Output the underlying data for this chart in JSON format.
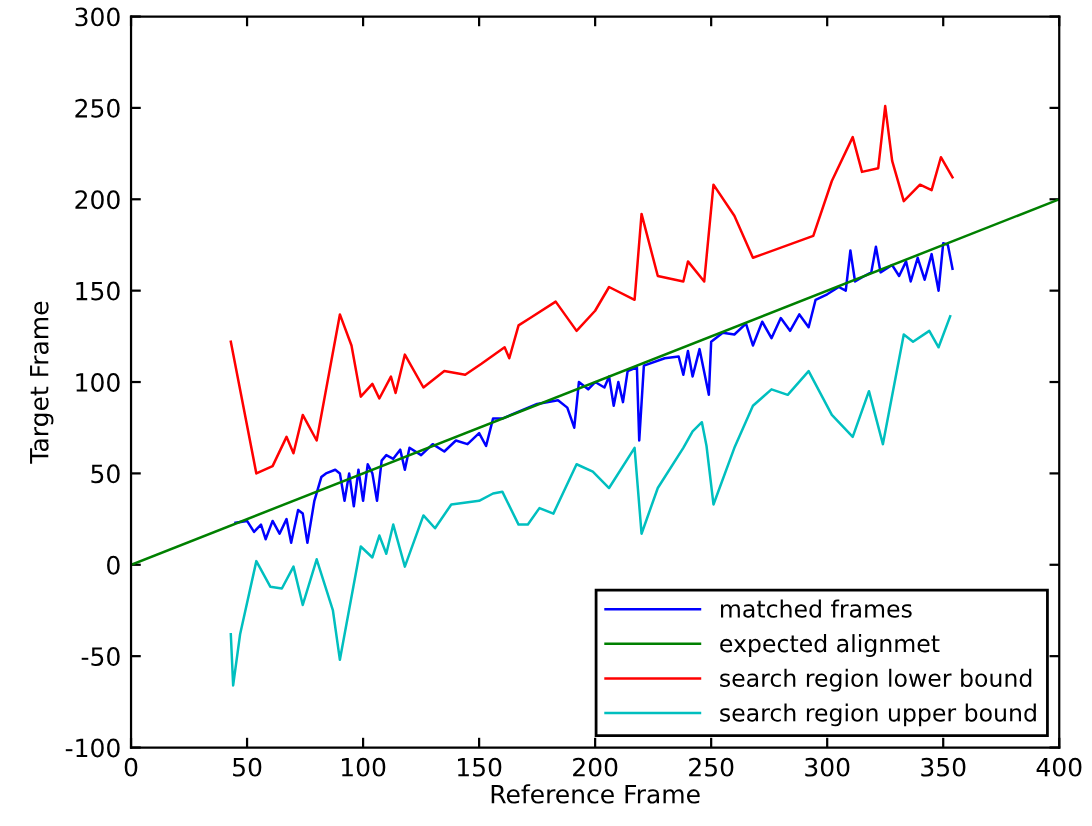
{
  "chart_data": {
    "type": "line",
    "xlabel": "Reference Frame",
    "ylabel": "Target Frame",
    "xlim": [
      0,
      400
    ],
    "ylim": [
      -100,
      300
    ],
    "xticks": [
      0,
      50,
      100,
      150,
      200,
      250,
      300,
      350,
      400
    ],
    "yticks": [
      -100,
      -50,
      0,
      50,
      100,
      150,
      200,
      250,
      300
    ],
    "grid": false,
    "legend": "bottom right",
    "series": [
      {
        "name": "matched frames",
        "color": "#0000ff",
        "x": [
          45,
          50,
          53,
          56,
          58,
          61,
          64,
          67,
          69,
          72,
          74,
          76,
          79,
          82,
          84,
          88,
          90,
          92,
          94,
          96,
          98,
          100,
          102,
          104,
          106,
          108,
          110,
          113,
          116,
          118,
          120,
          125,
          130,
          135,
          140,
          145,
          150,
          153,
          156,
          160,
          175,
          184,
          188,
          191,
          193,
          197,
          200,
          204,
          206,
          208,
          210,
          212,
          214,
          218,
          219,
          221,
          230,
          236,
          238,
          240,
          242,
          245,
          249,
          250,
          255,
          260,
          265,
          268,
          272,
          276,
          280,
          284,
          288,
          292,
          295,
          300,
          305,
          308,
          310,
          312,
          316,
          319,
          321,
          323,
          328,
          331,
          334,
          336,
          339,
          342,
          345,
          348,
          350,
          352,
          354
        ],
        "values": [
          23,
          24,
          18,
          22,
          14,
          24,
          17,
          25,
          12,
          30,
          28,
          12,
          35,
          48,
          50,
          52,
          50,
          35,
          50,
          32,
          52,
          35,
          55,
          50,
          35,
          57,
          60,
          58,
          63,
          52,
          64,
          60,
          66,
          62,
          68,
          66,
          72,
          65,
          80,
          80,
          88,
          90,
          86,
          75,
          100,
          96,
          100,
          97,
          103,
          87,
          100,
          89,
          106,
          108,
          68,
          109,
          113,
          114,
          104,
          117,
          103,
          118,
          93,
          122,
          127,
          126,
          132,
          120,
          133,
          124,
          135,
          128,
          137,
          130,
          145,
          148,
          152,
          150,
          172,
          155,
          158,
          160,
          174,
          160,
          164,
          158,
          166,
          155,
          168,
          156,
          170,
          150,
          176,
          175,
          162
        ]
      },
      {
        "name": "expected alignmet",
        "color": "#008000",
        "x": [
          0,
          400
        ],
        "values": [
          0,
          200
        ]
      },
      {
        "name": "search region lower bound",
        "color": "#ff0000",
        "x": [
          43,
          54,
          61,
          67,
          70,
          74,
          80,
          90,
          95,
          99,
          104,
          107,
          112,
          114,
          118,
          126,
          135,
          144,
          151,
          161,
          163,
          167,
          172,
          183,
          192,
          200,
          206,
          217,
          220,
          227,
          238,
          240,
          247,
          251,
          260,
          268,
          294,
          302,
          311,
          315,
          322,
          325,
          328,
          333,
          340,
          345,
          349,
          354
        ],
        "values": [
          122,
          50,
          54,
          70,
          61,
          82,
          68,
          137,
          120,
          92,
          99,
          91,
          103,
          94,
          115,
          97,
          106,
          104,
          110,
          119,
          113,
          131,
          135,
          144,
          128,
          139,
          152,
          145,
          192,
          158,
          155,
          166,
          155,
          208,
          191,
          168,
          180,
          210,
          234,
          215,
          217,
          251,
          221,
          199,
          208,
          205,
          223,
          212
        ]
      },
      {
        "name": "search region upper bound",
        "color": "#00bfbf",
        "x": [
          43,
          44,
          47,
          54,
          60,
          65,
          70,
          74,
          80,
          87,
          90,
          99,
          104,
          107,
          110,
          113,
          118,
          126,
          131,
          138,
          150,
          156,
          160,
          167,
          171,
          176,
          182,
          192,
          199,
          206,
          217,
          220,
          227,
          238,
          242,
          246,
          248,
          251,
          260,
          268,
          276,
          283,
          292,
          302,
          311,
          318,
          324,
          333,
          337,
          344,
          348,
          353
        ],
        "values": [
          -38,
          -66,
          -38,
          2,
          -12,
          -13,
          -1,
          -22,
          3,
          -25,
          -52,
          10,
          4,
          16,
          6,
          22,
          -1,
          27,
          20,
          33,
          35,
          39,
          40,
          22,
          22,
          31,
          28,
          55,
          51,
          42,
          64,
          17,
          42,
          64,
          73,
          78,
          65,
          33,
          64,
          87,
          96,
          93,
          106,
          82,
          70,
          95,
          66,
          126,
          122,
          128,
          119,
          136
        ]
      }
    ]
  }
}
